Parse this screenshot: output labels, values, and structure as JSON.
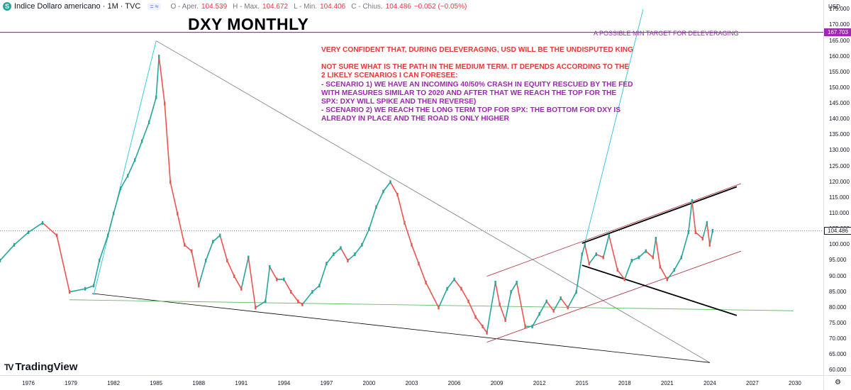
{
  "header": {
    "symbol_icon": "S",
    "title": "Indice Dollaro americano · 1M · TVC",
    "open_label": "O - Aper.",
    "open": "104.539",
    "high_label": "H - Max.",
    "high": "104.672",
    "low_label": "L - Min.",
    "low": "104.406",
    "close_label": "C - Chius.",
    "close": "104.486",
    "change": "−0.052 (−0.05%)"
  },
  "headline": "DXY MONTHLY",
  "annotations": {
    "target_note": "A POSSIBLE MIN TARGET FOR DELEVERAGING",
    "line1": "VERY CONFIDENT THAT, DURING DELEVERAGING, USD WILL BE THE UNDISPUTED  KING",
    "line2": "NOT SURE WHAT IS THE PATH IN THE MEDIUM TERM. IT DEPENDS ACCORDING TO THE 2 LIKELY SCENARIOS I CAN FORESEE:",
    "line3": "- SCENARIO 1) WE HAVE AN INCOMING 40/50% CRASH IN EQUITY RESCUED BY THE FED WITH MEASURES SIMILAR TO 2020 AND AFTER THAT WE REACH THE TOP FOR THE SPX: DXY WILL SPIKE AND THEN REVERSE)",
    "line4": "- SCENARIO 2) WE REACH THE LONG TERM TOP FOR SPX: THE BOTTOM FOR DXY IS ALREADY IN PLACE AND THE ROAD IS ONLY HIGHER"
  },
  "branding": {
    "logo_mark": "TV",
    "name": "TradingView"
  },
  "price_axis": {
    "currency": "USD",
    "current_price": "104.486",
    "target_price": "167.703",
    "current_value": 104.486,
    "target_value": 167.703
  },
  "time_axis": {
    "settings_icon": "gear-icon"
  },
  "chart_data": {
    "type": "line",
    "title": "DXY MONTHLY",
    "xlabel": "",
    "ylabel": "USD",
    "ylim": [
      58.5,
      178.0
    ],
    "xlim": [
      1974.0,
      2032.0
    ],
    "y_ticks": [
      60,
      65,
      70,
      75,
      80,
      85,
      90,
      95,
      100,
      105,
      110,
      115,
      120,
      125,
      130,
      135,
      140,
      145,
      150,
      155,
      160,
      165,
      170,
      175
    ],
    "y_tick_labels": [
      "60.000",
      "65.000",
      "70.000",
      "75.000",
      "80.000",
      "85.000",
      "90.000",
      "95.000",
      "100.000",
      "105.000",
      "110.000",
      "115.000",
      "120.000",
      "125.000",
      "130.000",
      "135.000",
      "140.000",
      "145.000",
      "150.000",
      "155.000",
      "160.000",
      "165.000",
      "170.000",
      "175.000"
    ],
    "x_ticks": [
      1976,
      1979,
      1982,
      1985,
      1988,
      1991,
      1994,
      1997,
      2000,
      2003,
      2006,
      2009,
      2012,
      2015,
      2018,
      2021,
      2024,
      2027,
      2030
    ],
    "x_tick_labels": [
      "1976",
      "1979",
      "1982",
      "1985",
      "1988",
      "1991",
      "1994",
      "1997",
      "2000",
      "2003",
      "2006",
      "2009",
      "2012",
      "2015",
      "2018",
      "2021",
      "2024",
      "2027",
      "2030"
    ],
    "series": [
      {
        "name": "DXY (approx. monthly path)",
        "x": [
          1974.0,
          1975.0,
          1976.0,
          1977.0,
          1978.0,
          1978.9,
          1980.0,
          1980.6,
          1981.0,
          1981.6,
          1982.0,
          1982.5,
          1983.0,
          1983.5,
          1984.0,
          1984.5,
          1985.0,
          1985.2,
          1985.6,
          1986.0,
          1986.5,
          1987.0,
          1987.5,
          1988.0,
          1988.5,
          1989.0,
          1989.5,
          1990.0,
          1990.5,
          1991.0,
          1991.5,
          1992.0,
          1992.7,
          1993.0,
          1993.5,
          1994.0,
          1994.5,
          1995.0,
          1995.3,
          1996.0,
          1996.5,
          1997.0,
          1997.5,
          1998.0,
          1998.5,
          1999.0,
          1999.5,
          2000.0,
          2000.5,
          2001.0,
          2001.5,
          2002.0,
          2002.5,
          2003.0,
          2003.5,
          2004.0,
          2004.9,
          2005.5,
          2006.0,
          2006.5,
          2007.0,
          2007.5,
          2008.0,
          2008.3,
          2008.9,
          2009.2,
          2009.6,
          2010.0,
          2010.4,
          2011.0,
          2011.5,
          2012.0,
          2012.5,
          2013.0,
          2013.5,
          2014.0,
          2014.6,
          2015.0,
          2015.2,
          2015.5,
          2016.0,
          2016.5,
          2016.9,
          2017.5,
          2018.0,
          2018.5,
          2019.0,
          2019.5,
          2020.0,
          2020.2,
          2020.5,
          2021.0,
          2021.5,
          2022.0,
          2022.5,
          2022.75,
          2023.0,
          2023.5,
          2023.8,
          2024.0,
          2024.2
        ],
        "values": [
          95,
          100,
          104,
          107,
          103,
          85,
          86,
          87,
          95,
          103,
          110,
          118,
          122,
          127,
          133,
          139,
          147,
          160,
          145,
          120,
          110,
          100,
          98,
          87,
          95,
          101,
          103,
          95,
          90,
          86,
          96,
          80,
          82,
          93,
          89,
          89,
          85,
          82,
          81,
          85,
          87,
          94,
          97,
          99,
          95,
          97,
          100,
          105,
          112,
          117,
          120,
          116,
          107,
          100,
          94,
          88,
          80,
          86,
          89,
          86,
          82,
          77,
          74,
          72,
          88,
          81,
          76,
          85,
          88,
          74,
          74,
          78,
          82,
          79,
          83,
          80,
          85,
          97,
          100,
          94,
          97,
          96,
          103,
          92,
          89,
          95,
          96,
          98,
          96,
          102,
          93,
          89,
          92,
          96,
          104,
          114,
          104,
          102,
          107,
          100,
          104.5
        ]
      }
    ],
    "horizontal_lines": [
      {
        "name": "min target",
        "value": 167.703
      },
      {
        "name": "current price",
        "value": 104.486
      }
    ],
    "trendlines": [
      {
        "name": "long-term downtrend from 1985 top",
        "from": [
          1985.0,
          165.0
        ],
        "to": [
          2024.0,
          62.5
        ]
      },
      {
        "name": "lower support line",
        "from": [
          1980.5,
          84.5
        ],
        "to": [
          2024.0,
          62.5
        ]
      },
      {
        "name": "green horizontal support",
        "from": [
          1978.9,
          82.5
        ],
        "to": [
          2029.9,
          79.0
        ]
      },
      {
        "name": "rally line 1980-1985",
        "from": [
          1980.6,
          84.0
        ],
        "to": [
          1985.0,
          165.0
        ]
      },
      {
        "name": "projection line from 2015",
        "from": [
          2015.2,
          100.5
        ],
        "to": [
          2019.3,
          175.0
        ]
      },
      {
        "name": "channel top (red)",
        "from": [
          2008.3,
          90.0
        ],
        "to": [
          2026.2,
          119.5
        ]
      },
      {
        "name": "channel bottom (red)",
        "from": [
          2008.3,
          69.0
        ],
        "to": [
          2026.2,
          98.0
        ]
      },
      {
        "name": "megaphone top (black)",
        "from": [
          2015.0,
          100.5
        ],
        "to": [
          2025.9,
          118.5
        ]
      },
      {
        "name": "megaphone bottom (black)",
        "from": [
          2015.0,
          93.5
        ],
        "to": [
          2025.9,
          77.5
        ]
      }
    ]
  },
  "colors": {
    "up": "#26a69a",
    "down": "#ef5350",
    "purple": "#9c27b0",
    "cyan": "#26c6da",
    "green": "#66bb6a",
    "channel": "#b2404a",
    "black": "#000000",
    "grey": "#787b86"
  }
}
